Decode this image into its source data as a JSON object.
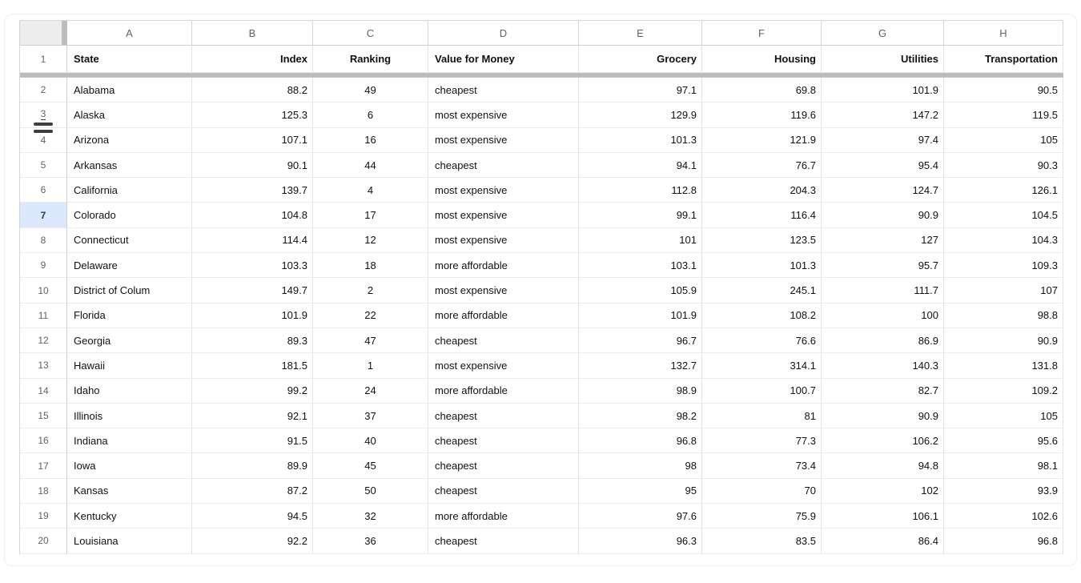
{
  "app": {
    "type": "spreadsheet"
  },
  "colors": {
    "selection_bg": "#dbe8fd",
    "selection_fg": "#1b3a6b",
    "frozen_bar": "#bcbcbc",
    "grid_line": "#e2e3e3",
    "header_text": "#5f6368",
    "resize_handle": "#3e3e3e"
  },
  "sheet": {
    "column_letters": [
      "A",
      "B",
      "C",
      "D",
      "E",
      "F",
      "G",
      "H"
    ],
    "header_row": {
      "number": "1",
      "cells": [
        "State",
        "Index",
        "Ranking",
        "Value for Money",
        "Grocery",
        "Housing",
        "Utilities",
        "Transportation"
      ]
    },
    "selected_row_number": "7",
    "resize_indicator_between_rows": [
      "3",
      "4"
    ],
    "rows": [
      {
        "number": "2",
        "cells": [
          "Alabama",
          "88.2",
          "49",
          "cheapest",
          "97.1",
          "69.8",
          "101.9",
          "90.5"
        ]
      },
      {
        "number": "3",
        "cells": [
          "Alaska",
          "125.3",
          "6",
          "most expensive",
          "129.9",
          "119.6",
          "147.2",
          "119.5"
        ]
      },
      {
        "number": "4",
        "cells": [
          "Arizona",
          "107.1",
          "16",
          "most expensive",
          "101.3",
          "121.9",
          "97.4",
          "105"
        ]
      },
      {
        "number": "5",
        "cells": [
          "Arkansas",
          "90.1",
          "44",
          "cheapest",
          "94.1",
          "76.7",
          "95.4",
          "90.3"
        ]
      },
      {
        "number": "6",
        "cells": [
          "California",
          "139.7",
          "4",
          "most expensive",
          "112.8",
          "204.3",
          "124.7",
          "126.1"
        ]
      },
      {
        "number": "7",
        "cells": [
          "Colorado",
          "104.8",
          "17",
          "most expensive",
          "99.1",
          "116.4",
          "90.9",
          "104.5"
        ]
      },
      {
        "number": "8",
        "cells": [
          "Connecticut",
          "114.4",
          "12",
          "most expensive",
          "101",
          "123.5",
          "127",
          "104.3"
        ]
      },
      {
        "number": "9",
        "cells": [
          "Delaware",
          "103.3",
          "18",
          "more affordable",
          "103.1",
          "101.3",
          "95.7",
          "109.3"
        ]
      },
      {
        "number": "10",
        "cells": [
          "District of Colum",
          "149.7",
          "2",
          "most expensive",
          "105.9",
          "245.1",
          "111.7",
          "107"
        ]
      },
      {
        "number": "11",
        "cells": [
          "Florida",
          "101.9",
          "22",
          "more affordable",
          "101.9",
          "108.2",
          "100",
          "98.8"
        ]
      },
      {
        "number": "12",
        "cells": [
          "Georgia",
          "89.3",
          "47",
          "cheapest",
          "96.7",
          "76.6",
          "86.9",
          "90.9"
        ]
      },
      {
        "number": "13",
        "cells": [
          "Hawaii",
          "181.5",
          "1",
          "most expensive",
          "132.7",
          "314.1",
          "140.3",
          "131.8"
        ]
      },
      {
        "number": "14",
        "cells": [
          "Idaho",
          "99.2",
          "24",
          "more affordable",
          "98.9",
          "100.7",
          "82.7",
          "109.2"
        ]
      },
      {
        "number": "15",
        "cells": [
          "Illinois",
          "92.1",
          "37",
          "cheapest",
          "98.2",
          "81",
          "90.9",
          "105"
        ]
      },
      {
        "number": "16",
        "cells": [
          "Indiana",
          "91.5",
          "40",
          "cheapest",
          "96.8",
          "77.3",
          "106.2",
          "95.6"
        ]
      },
      {
        "number": "17",
        "cells": [
          "Iowa",
          "89.9",
          "45",
          "cheapest",
          "98",
          "73.4",
          "94.8",
          "98.1"
        ]
      },
      {
        "number": "18",
        "cells": [
          "Kansas",
          "87.2",
          "50",
          "cheapest",
          "95",
          "70",
          "102",
          "93.9"
        ]
      },
      {
        "number": "19",
        "cells": [
          "Kentucky",
          "94.5",
          "32",
          "more affordable",
          "97.6",
          "75.9",
          "106.1",
          "102.6"
        ]
      },
      {
        "number": "20",
        "cells": [
          "Louisiana",
          "92.2",
          "36",
          "cheapest",
          "96.3",
          "83.5",
          "86.4",
          "96.8"
        ]
      }
    ]
  }
}
